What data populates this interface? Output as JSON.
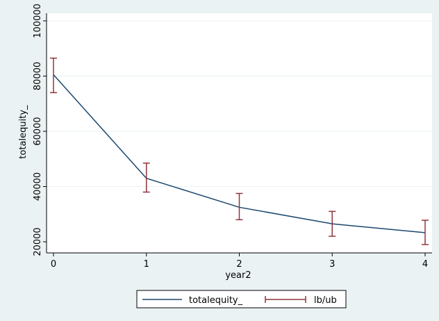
{
  "chart_data": {
    "type": "line",
    "title": "",
    "xlabel": "year2",
    "ylabel": "totalequity_",
    "xlim": [
      0,
      4
    ],
    "ylim": [
      20000,
      100000
    ],
    "x_ticks": [
      0,
      1,
      2,
      3,
      4
    ],
    "y_ticks": [
      20000,
      40000,
      60000,
      80000,
      100000
    ],
    "grid": true,
    "legend_position": "bottom",
    "series": [
      {
        "name": "totalequity_",
        "kind": "line",
        "color": "#1a476f",
        "x": [
          0,
          1,
          2,
          3,
          4
        ],
        "y": [
          80500,
          43000,
          32500,
          26500,
          23300
        ]
      },
      {
        "name": "lb/ub",
        "kind": "errorbar",
        "color": "#90353b",
        "x": [
          0,
          1,
          2,
          3,
          4
        ],
        "lower": [
          74000,
          38000,
          28000,
          22000,
          19000
        ],
        "upper": [
          86500,
          48500,
          37500,
          31000,
          27800
        ]
      }
    ]
  }
}
